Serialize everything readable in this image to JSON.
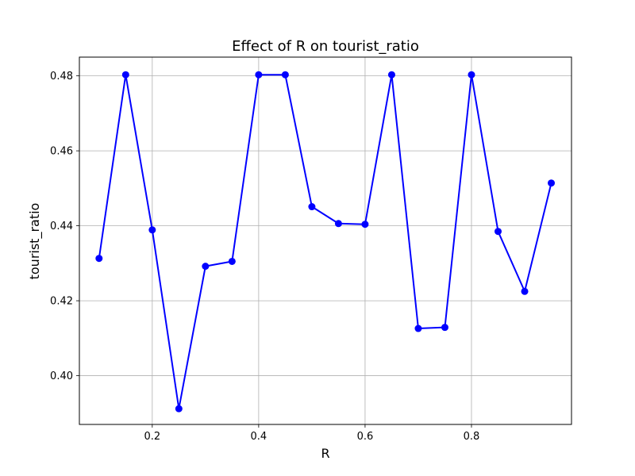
{
  "chart_data": {
    "type": "line",
    "title": "Effect of R on tourist_ratio",
    "xlabel": "R",
    "ylabel": "tourist_ratio",
    "xlim": [
      0.063,
      0.988
    ],
    "ylim": [
      0.387,
      0.485
    ],
    "x_ticks": [
      0.2,
      0.4,
      0.6,
      0.8
    ],
    "x_tick_labels": [
      "0.2",
      "0.4",
      "0.6",
      "0.8"
    ],
    "y_ticks": [
      0.4,
      0.42,
      0.44,
      0.46,
      0.48
    ],
    "y_tick_labels": [
      "0.40",
      "0.42",
      "0.44",
      "0.46",
      "0.48"
    ],
    "grid": true,
    "series": [
      {
        "color": "#0000ff",
        "marker": "circle",
        "x": [
          0.1,
          0.15,
          0.2,
          0.25,
          0.3,
          0.35,
          0.4,
          0.45,
          0.5,
          0.55,
          0.6,
          0.65,
          0.7,
          0.75,
          0.8,
          0.85,
          0.9,
          0.95
        ],
        "y": [
          0.4313,
          0.4803,
          0.4389,
          0.3912,
          0.4292,
          0.4305,
          0.4803,
          0.4803,
          0.4451,
          0.4406,
          0.4404,
          0.4803,
          0.4126,
          0.4129,
          0.4803,
          0.4385,
          0.4225,
          0.4514
        ]
      }
    ]
  }
}
